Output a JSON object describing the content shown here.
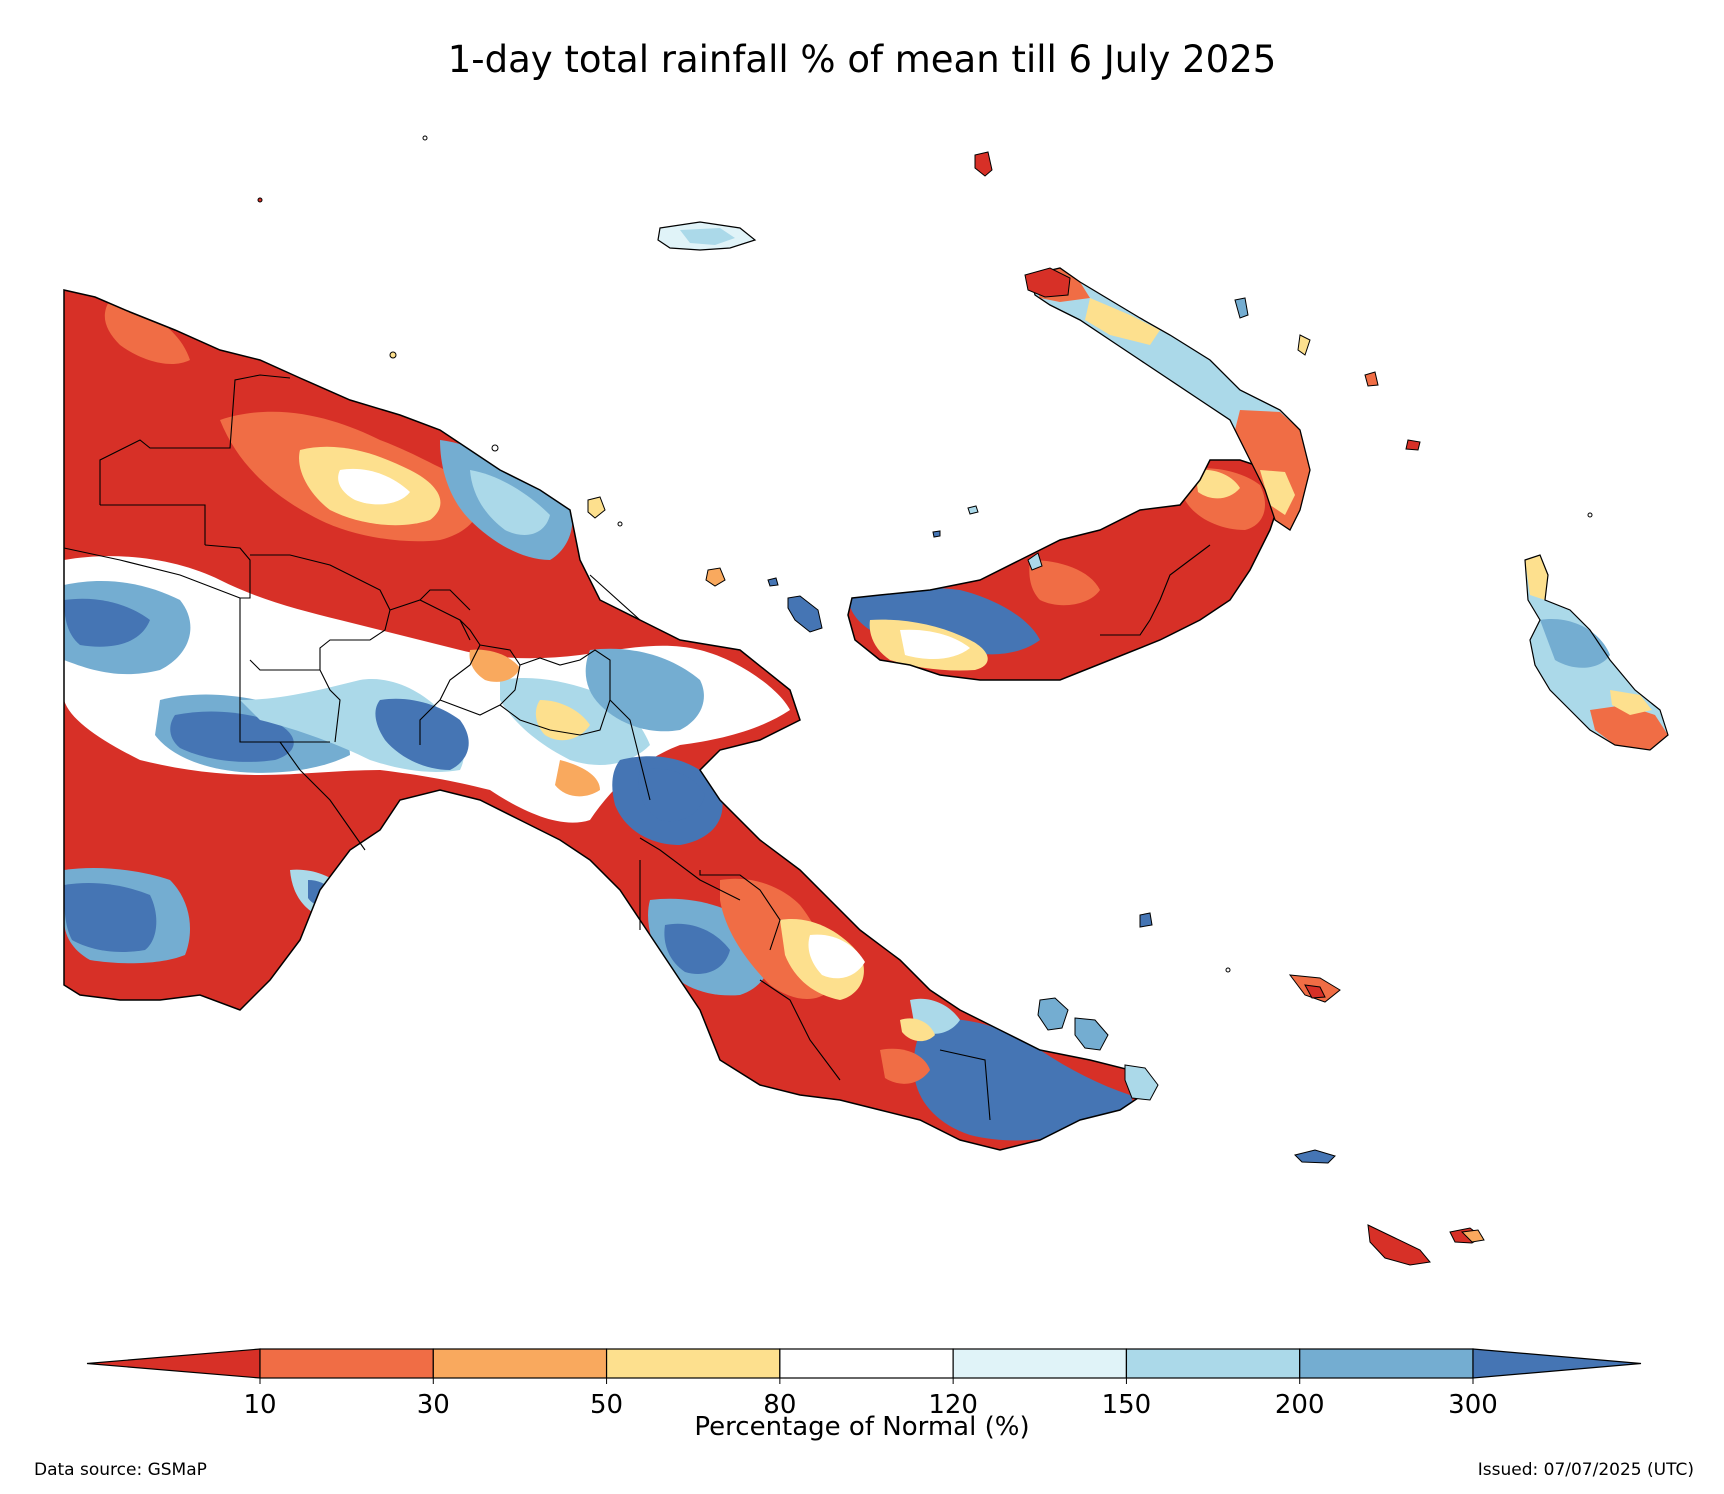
{
  "title": "1-day total rainfall % of mean till 6 July 2025",
  "colorbar": {
    "label": "Percentage of Normal (%)",
    "ticks": [
      "10",
      "30",
      "50",
      "80",
      "120",
      "150",
      "200",
      "300"
    ],
    "colors": {
      "below_10": "#d73027",
      "10_30": "#f06d45",
      "30_50": "#f9a95e",
      "50_80": "#fde08e",
      "80_120": "#ffffff",
      "120_150": "#e0f3f8",
      "150_200": "#abd9e9",
      "200_300": "#74add1",
      "above_300": "#4575b4"
    }
  },
  "footer": {
    "source": "Data source: GSMaP",
    "issued": "Issued: 07/07/2025 (UTC)"
  },
  "map": {
    "region": "Papua New Guinea",
    "layer": "rainfall percent of normal"
  }
}
